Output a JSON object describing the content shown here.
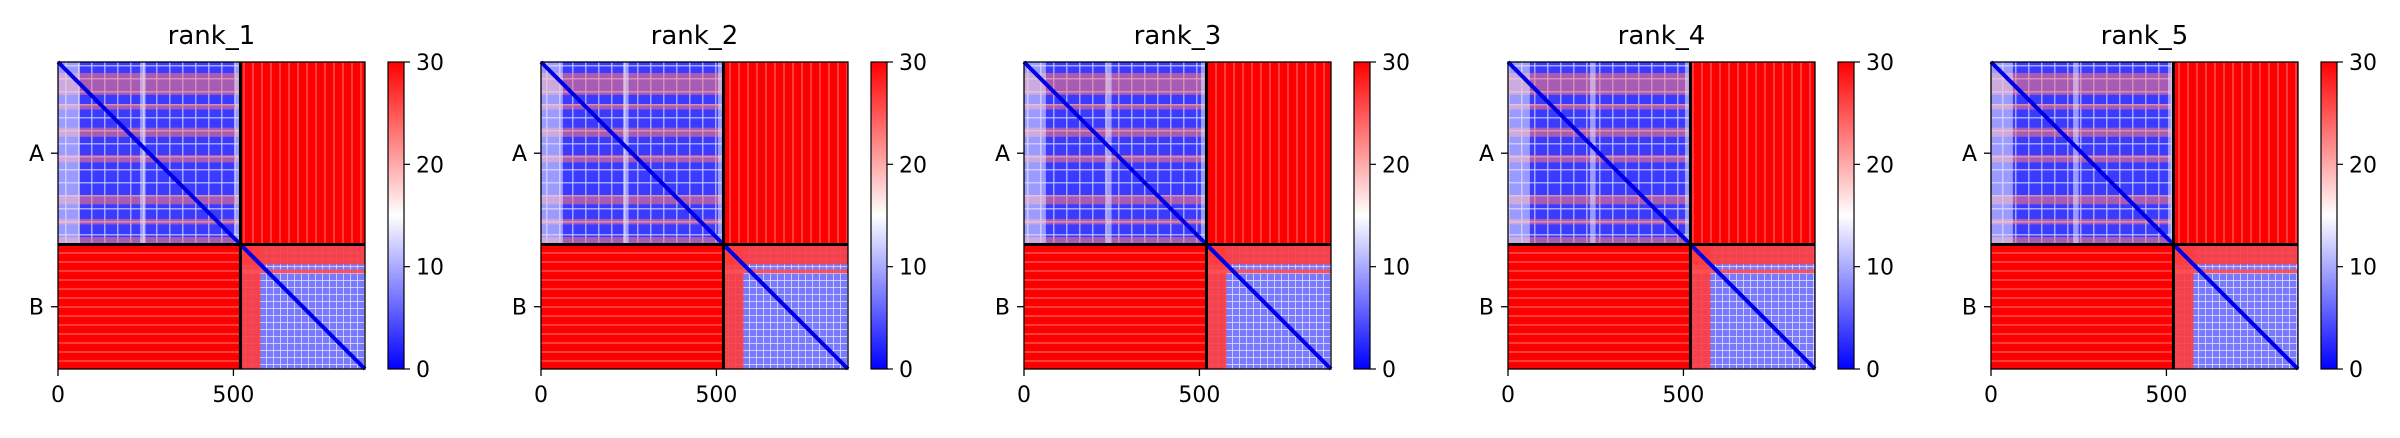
{
  "chart_data": [
    {
      "type": "heatmap",
      "title": "rank_1",
      "chains": [
        "A",
        "B"
      ],
      "chain_break": 520,
      "length": 875,
      "xticks": [
        0,
        500
      ],
      "xtick_labels": [
        "0",
        "500"
      ],
      "colorbar": {
        "min": 0,
        "max": 30,
        "ticks": [
          0,
          10,
          20,
          30
        ],
        "tick_labels": [
          "0",
          "10",
          "20",
          "30"
        ],
        "colors": [
          "#0000ff",
          "#ffffff",
          "#ff0000"
        ]
      }
    },
    {
      "type": "heatmap",
      "title": "rank_2",
      "chains": [
        "A",
        "B"
      ],
      "chain_break": 520,
      "length": 875,
      "xticks": [
        0,
        500
      ],
      "xtick_labels": [
        "0",
        "500"
      ],
      "colorbar": {
        "min": 0,
        "max": 30,
        "ticks": [
          0,
          10,
          20,
          30
        ],
        "tick_labels": [
          "0",
          "10",
          "20",
          "30"
        ],
        "colors": [
          "#0000ff",
          "#ffffff",
          "#ff0000"
        ]
      }
    },
    {
      "type": "heatmap",
      "title": "rank_3",
      "chains": [
        "A",
        "B"
      ],
      "chain_break": 520,
      "length": 875,
      "xticks": [
        0,
        500
      ],
      "xtick_labels": [
        "0",
        "500"
      ],
      "colorbar": {
        "min": 0,
        "max": 30,
        "ticks": [
          0,
          10,
          20,
          30
        ],
        "tick_labels": [
          "0",
          "10",
          "20",
          "30"
        ],
        "colors": [
          "#0000ff",
          "#ffffff",
          "#ff0000"
        ]
      }
    },
    {
      "type": "heatmap",
      "title": "rank_4",
      "chains": [
        "A",
        "B"
      ],
      "chain_break": 520,
      "length": 875,
      "xticks": [
        0,
        500
      ],
      "xtick_labels": [
        "0",
        "500"
      ],
      "colorbar": {
        "min": 0,
        "max": 30,
        "ticks": [
          0,
          10,
          20,
          30
        ],
        "tick_labels": [
          "0",
          "10",
          "20",
          "30"
        ],
        "colors": [
          "#0000ff",
          "#ffffff",
          "#ff0000"
        ]
      }
    },
    {
      "type": "heatmap",
      "title": "rank_5",
      "chains": [
        "A",
        "B"
      ],
      "chain_break": 520,
      "length": 875,
      "xticks": [
        0,
        500
      ],
      "xtick_labels": [
        "0",
        "500"
      ],
      "colorbar": {
        "min": 0,
        "max": 30,
        "ticks": [
          0,
          10,
          20,
          30
        ],
        "tick_labels": [
          "0",
          "10",
          "20",
          "30"
        ],
        "colors": [
          "#0000ff",
          "#ffffff",
          "#ff0000"
        ]
      }
    }
  ]
}
